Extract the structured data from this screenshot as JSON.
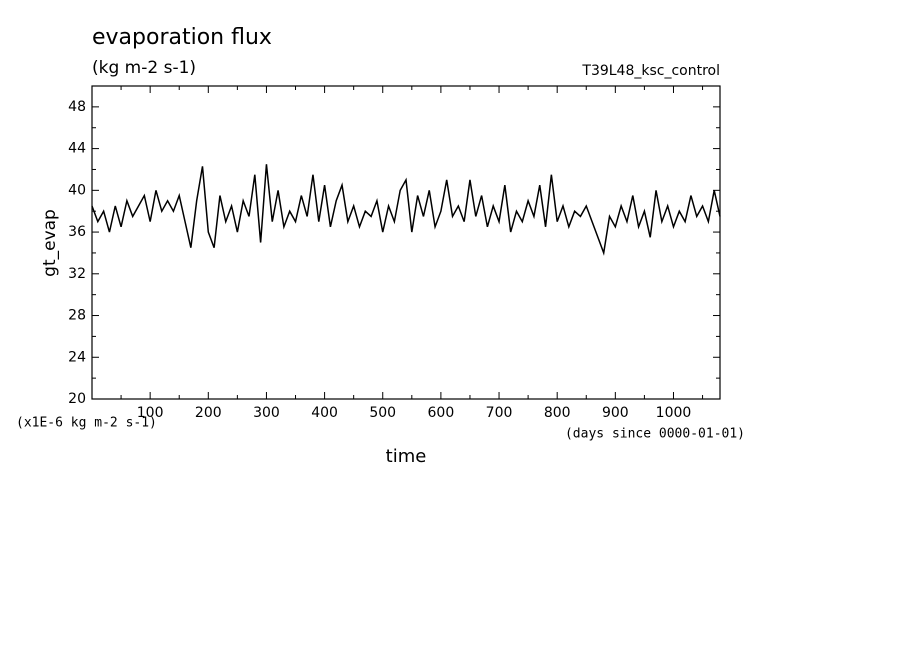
{
  "chart_data": {
    "type": "line",
    "title": "evaporation flux",
    "subtitle": "(kg m-2 s-1)",
    "annotation": "T39L48_ksc_control",
    "ylabel": "gt_evap",
    "yunits": "(x1E-6 kg m-2 s-1)",
    "xlabel": "time",
    "xunits": "(days since 0000-01-01)",
    "xlim": [
      0,
      1080
    ],
    "ylim": [
      20,
      50
    ],
    "xticks": [
      100,
      200,
      300,
      400,
      500,
      600,
      700,
      800,
      900,
      1000
    ],
    "yticks": [
      20,
      24,
      28,
      32,
      36,
      40,
      44,
      48
    ],
    "x": [
      0,
      10,
      20,
      30,
      40,
      50,
      60,
      70,
      80,
      90,
      100,
      110,
      120,
      130,
      140,
      150,
      160,
      170,
      180,
      190,
      200,
      210,
      220,
      230,
      240,
      250,
      260,
      270,
      280,
      290,
      300,
      310,
      320,
      330,
      340,
      350,
      360,
      370,
      380,
      390,
      400,
      410,
      420,
      430,
      440,
      450,
      460,
      470,
      480,
      490,
      500,
      510,
      520,
      530,
      540,
      550,
      560,
      570,
      580,
      590,
      600,
      610,
      620,
      630,
      640,
      650,
      660,
      670,
      680,
      690,
      700,
      710,
      720,
      730,
      740,
      750,
      760,
      770,
      780,
      790,
      800,
      810,
      820,
      830,
      840,
      850,
      860,
      870,
      880,
      890,
      900,
      910,
      920,
      930,
      940,
      950,
      960,
      970,
      980,
      990,
      1000,
      1010,
      1020,
      1030,
      1040,
      1050,
      1060,
      1070,
      1080
    ],
    "series": [
      {
        "color": "#000000",
        "values": [
          38.5,
          37,
          38,
          36,
          38.5,
          36.5,
          39,
          37.5,
          38.5,
          39.5,
          37,
          40,
          38,
          39,
          38,
          39.5,
          37,
          34.5,
          39,
          42.3,
          36,
          34.5,
          39.5,
          37,
          38.5,
          36,
          39,
          37.5,
          41.5,
          35,
          42.5,
          37,
          40,
          36.5,
          38,
          37,
          39.5,
          37.5,
          41.5,
          37,
          40.5,
          36.5,
          39,
          40.5,
          37,
          38.5,
          36.5,
          38,
          37.5,
          39,
          36,
          38.5,
          37,
          40,
          41,
          36,
          39.5,
          37.5,
          40,
          36.5,
          38,
          41,
          37.5,
          38.5,
          37,
          41,
          37.5,
          39.5,
          36.5,
          38.5,
          37,
          40.5,
          36,
          38,
          37,
          39,
          37.5,
          40.5,
          36.5,
          41.5,
          37,
          38.5,
          36.5,
          38,
          37.5,
          38.5,
          37,
          35.5,
          34,
          37.5,
          36.5,
          38.5,
          37,
          39.5,
          36.5,
          38,
          35.5,
          40,
          37,
          38.5,
          36.5,
          38,
          37,
          39.5,
          37.5,
          38.5,
          37,
          40,
          37.5
        ]
      }
    ]
  }
}
